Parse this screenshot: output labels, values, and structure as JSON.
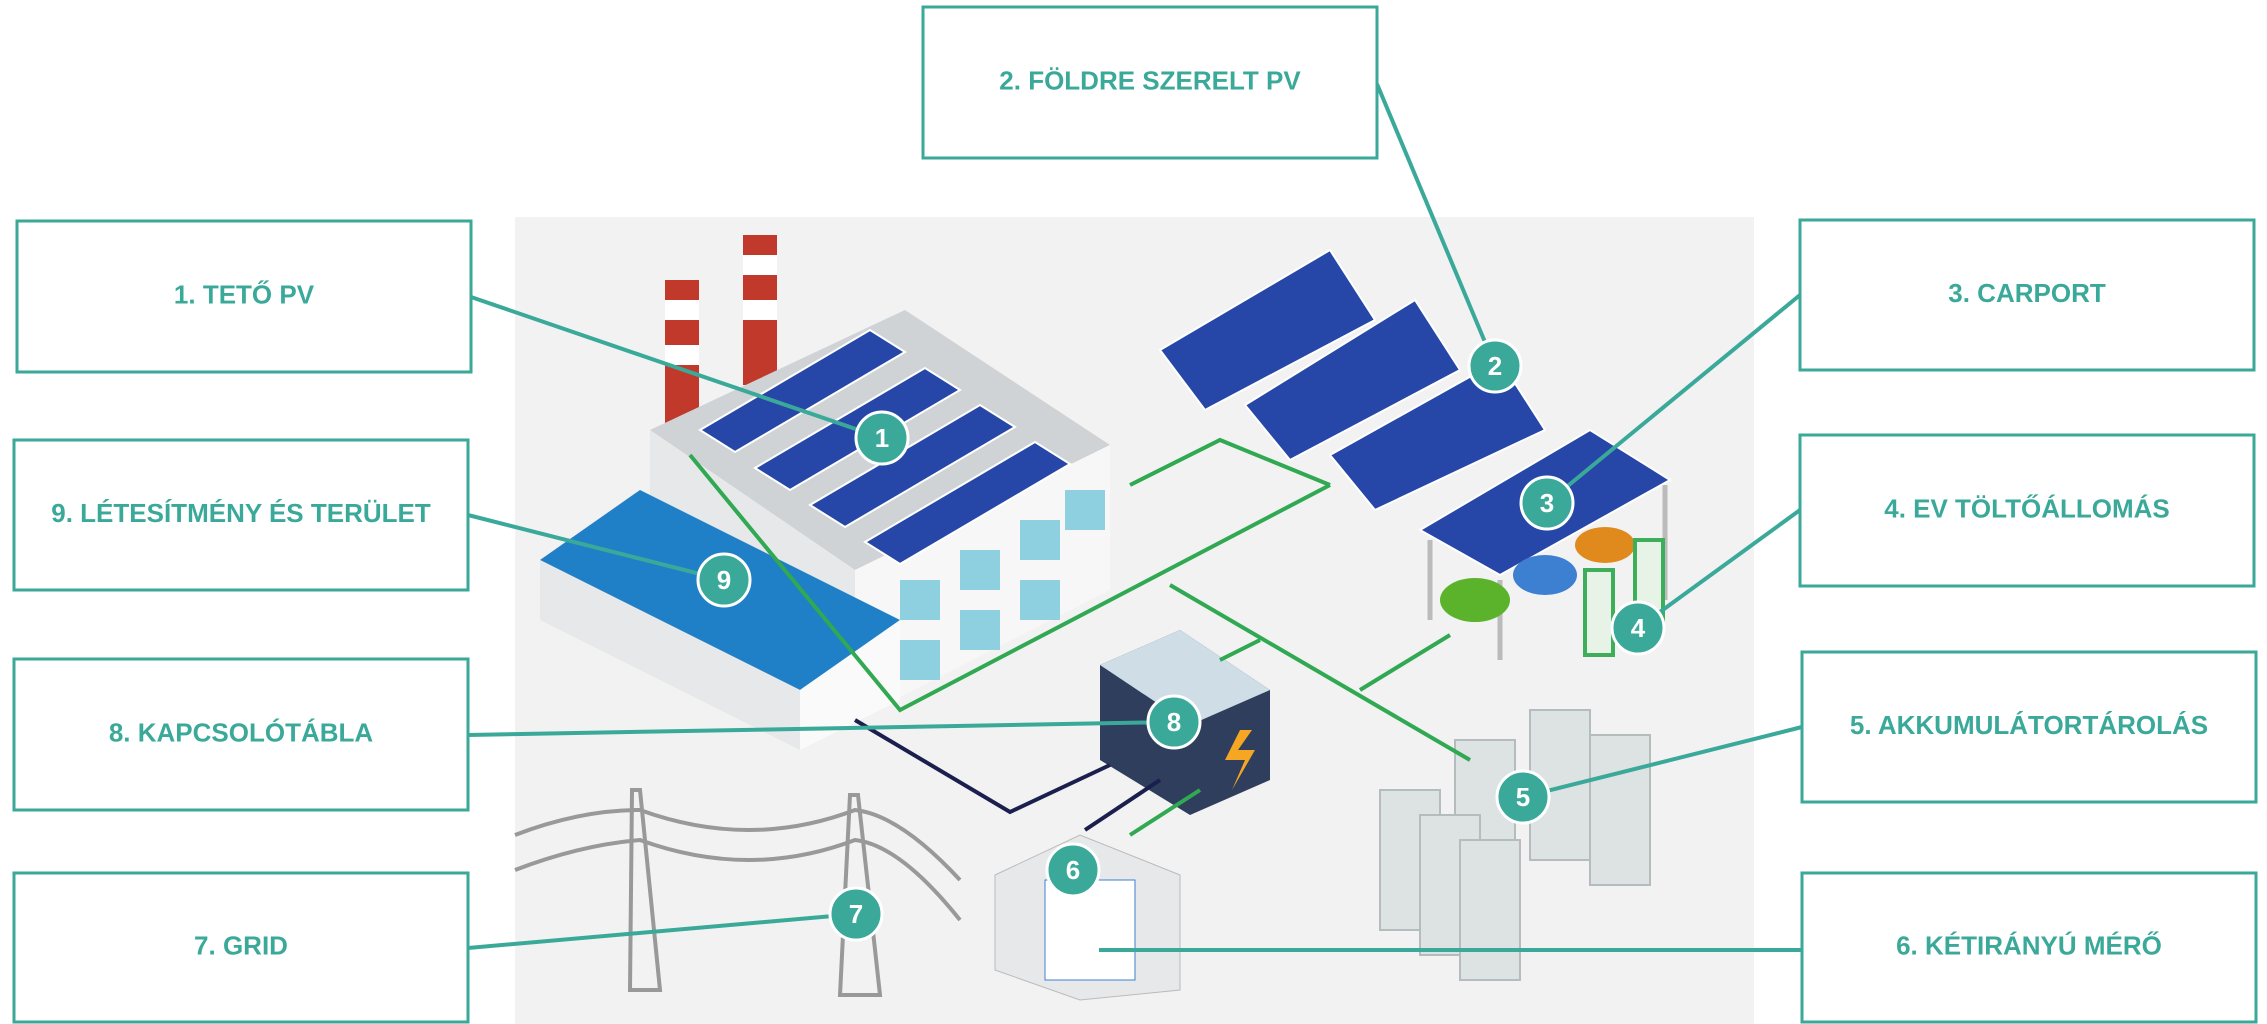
{
  "callouts": [
    {
      "marker": "1",
      "label": "1. TETŐ PV"
    },
    {
      "marker": "2",
      "label": "2. FÖLDRE SZERELT PV"
    },
    {
      "marker": "3",
      "label": "3. CARPORT"
    },
    {
      "marker": "4",
      "label": "4. EV TÖLTŐÁLLOMÁS"
    },
    {
      "marker": "5",
      "label": "5. AKKUMULÁTORTÁROLÁS"
    },
    {
      "marker": "6",
      "label": "6. KÉTIRÁNYÚ MÉRŐ"
    },
    {
      "marker": "7",
      "label": "7. GRID"
    },
    {
      "marker": "8",
      "label": "8. KAPCSOLÓTÁBLA"
    },
    {
      "marker": "9",
      "label": "9. LÉTESÍTMÉNY ÉS TERÜLET"
    }
  ]
}
